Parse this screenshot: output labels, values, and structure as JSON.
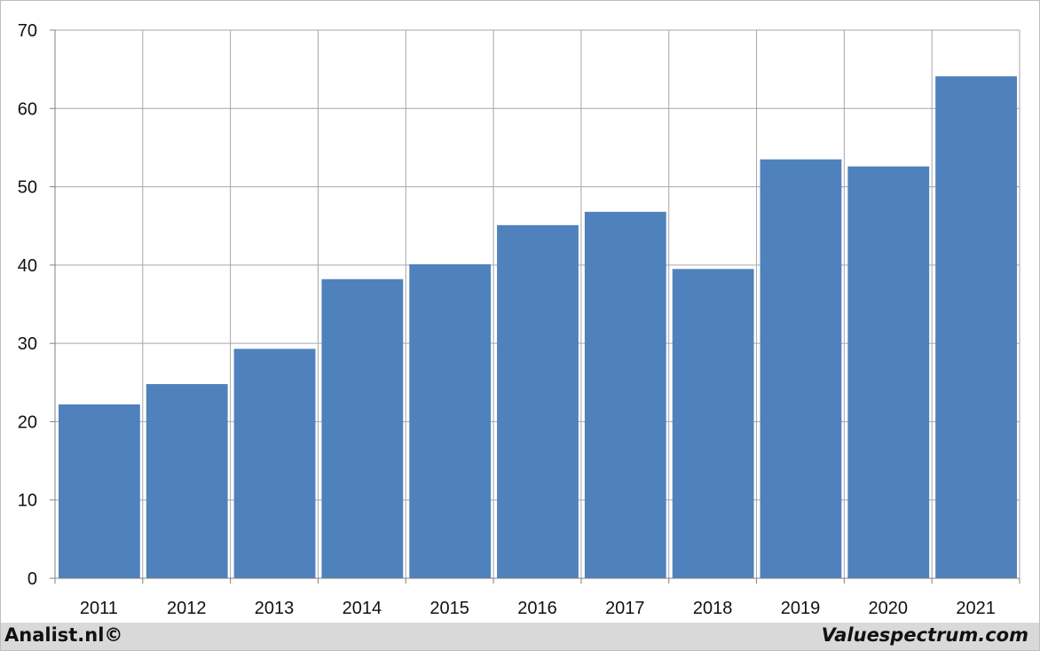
{
  "chart_data": {
    "type": "bar",
    "categories": [
      "2011",
      "2012",
      "2013",
      "2014",
      "2015",
      "2016",
      "2017",
      "2018",
      "2019",
      "2020",
      "2021"
    ],
    "values": [
      22.2,
      24.8,
      29.3,
      38.2,
      40.1,
      45.1,
      46.8,
      39.5,
      53.5,
      52.6,
      64.1
    ],
    "ylim": [
      0,
      70
    ],
    "yticks": [
      0,
      10,
      20,
      30,
      40,
      50,
      60,
      70
    ],
    "ytick_labels": [
      "0",
      "10",
      "20",
      "30",
      "40",
      "50",
      "60",
      "70"
    ],
    "grid": true,
    "bar_color": "#4f81bd",
    "grid_color": "#a6a6a6",
    "title": "",
    "xlabel": "",
    "ylabel": ""
  },
  "footer": {
    "left": "Analist.nl©",
    "right": "Valuespectrum.com"
  }
}
